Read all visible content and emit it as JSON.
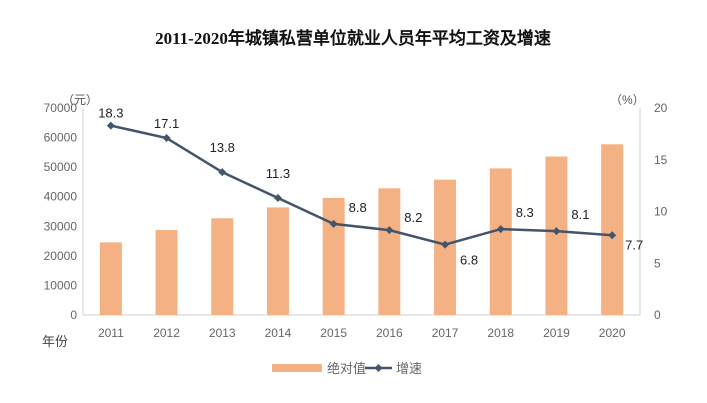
{
  "chart_data": {
    "type": "bar+line",
    "title": "2011-2020年城镇私营单位就业人员年平均工资及增速",
    "categories": [
      "2011",
      "2012",
      "2013",
      "2014",
      "2015",
      "2016",
      "2017",
      "2018",
      "2019",
      "2020"
    ],
    "xlabel": "年份",
    "y_left": {
      "unit": "（元）",
      "range": [
        0,
        70000
      ],
      "ticks": [
        "0",
        "10000",
        "20000",
        "30000",
        "40000",
        "50000",
        "60000",
        "70000"
      ]
    },
    "y_right": {
      "unit": "（%）",
      "range": [
        0,
        20
      ],
      "ticks": [
        "0",
        "5",
        "10",
        "15",
        "20"
      ]
    },
    "series": [
      {
        "name": "绝对值",
        "type": "bar",
        "axis": "left",
        "color": "#F4B183",
        "values": [
          24556,
          28752,
          32706,
          36390,
          39589,
          42833,
          45761,
          49575,
          53604,
          57727
        ]
      },
      {
        "name": "增速",
        "type": "line",
        "axis": "right",
        "color": "#44546A",
        "values": [
          18.3,
          17.1,
          13.8,
          11.3,
          8.8,
          8.2,
          6.8,
          8.3,
          8.1,
          7.7
        ],
        "data_labels": [
          "18.3",
          "17.1",
          "13.8",
          "11.3",
          "8.8",
          "8.2",
          "6.8",
          "8.3",
          "8.1",
          "7.7"
        ]
      }
    ],
    "legend": "bottom",
    "grid": false
  }
}
